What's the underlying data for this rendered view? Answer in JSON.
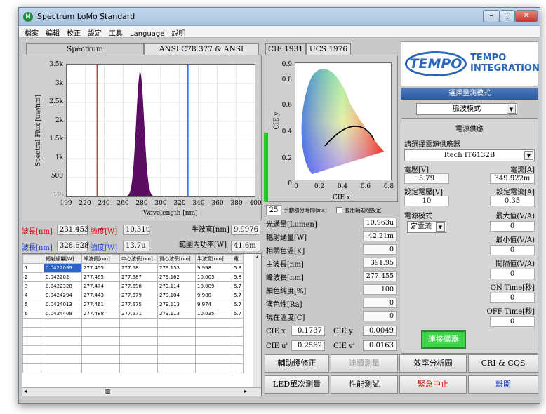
{
  "window": {
    "title": "Spectrum LoMo Standard",
    "icon_letter": "M",
    "min": "–",
    "max": "□",
    "close": "✕"
  },
  "menu": [
    "檔案",
    "編輯",
    "校正",
    "設定",
    "工具",
    "Language",
    "說明"
  ],
  "left_tabs": [
    "Spectrum",
    "ANSI C78.377 & ANSI C78.376"
  ],
  "spectrum_chart": {
    "type": "area",
    "ylabel": "Spectral Flux [uw/nm]",
    "xlabel": "Wavelength [nm]",
    "y_ticks": [
      "3.5k",
      "3k",
      "2.5k",
      "2k",
      "1.5k",
      "1k",
      "500",
      "1.8"
    ],
    "x_ticks": [
      "199",
      "220",
      "240",
      "260",
      "280",
      "300",
      "320",
      "340",
      "360",
      "380",
      "400"
    ],
    "xlim": [
      199,
      400
    ],
    "ylim": [
      0,
      3500
    ],
    "peak_x": 277.5,
    "peak_y": 3450,
    "peak_fwhm": 10,
    "fill_color": "#5b0d63",
    "red_line_x": 231.453,
    "blue_line_x": 328.628,
    "red_color": "#e8343a",
    "blue_color": "#2a63e0"
  },
  "markers": {
    "red_wl_label": "波長[nm]",
    "red_wl_value": "231.453",
    "red_int_label": "強度[W]",
    "red_int_value": "10.31u",
    "blue_wl_label": "波長[nm]",
    "blue_wl_value": "328.628",
    "blue_int_label": "強度[W]",
    "blue_int_value": "13.7u",
    "fwhm_label": "半波寬[nm]",
    "fwhm_value": "9.9976",
    "range_power_label": "範圍內功率[W]",
    "range_power_value": "41.6m"
  },
  "table": {
    "headers": [
      "",
      "輻射通量[W]",
      "峰波長[nm]",
      "中心波長[nm]",
      "質心波長[nm]",
      "半波寬[nm]",
      "電"
    ],
    "rows": [
      [
        "1",
        "0.0422099",
        "277.455",
        "277.58",
        "279.153",
        "9.998",
        "5.8"
      ],
      [
        "2",
        "0.042202",
        "277.465",
        "277.587",
        "279.162",
        "10.003",
        "5.8"
      ],
      [
        "3",
        "0.0422328",
        "277.474",
        "277.598",
        "279.114",
        "10.009",
        "5.7"
      ],
      [
        "4",
        "0.0424294",
        "277.443",
        "277.579",
        "279.104",
        "9.988",
        "5.7"
      ],
      [
        "5",
        "0.0424013",
        "277.461",
        "277.575",
        "279.113",
        "9.974",
        "5.7"
      ],
      [
        "6",
        "0.0424408",
        "277.488",
        "277.571",
        "279.113",
        "10.035",
        "5.7"
      ]
    ],
    "scroll_left": "◂",
    "scroll_right": "▸",
    "scroll_up": "▴",
    "scroll_thumb": "▥"
  },
  "cie_tabs": [
    "CIE 1931",
    "UCS 1976"
  ],
  "cie_chart": {
    "xlabel": "CIE x",
    "ylabel": "CIE y",
    "x_ticks": [
      "0",
      "0.2",
      "0.4",
      "0.6",
      "0.8"
    ],
    "y_ticks": [
      "0.9",
      "0.8",
      "0.6",
      "0.4",
      "0.2",
      "0"
    ]
  },
  "integration": {
    "value": "25",
    "label": "手動積分時間(ms)",
    "aux_label": "套用輔助燈設定"
  },
  "measurements": [
    {
      "label": "光通量[Lumen]",
      "value": "10.963u"
    },
    {
      "label": "輻射通量[W]",
      "value": "42.21m"
    },
    {
      "label": "相關色溫[K]",
      "value": "0"
    },
    {
      "label": "主波長[nm]",
      "value": "391.95"
    },
    {
      "label": "峰波長[nm]",
      "value": "277.455"
    },
    {
      "label": "顏色純度[%]",
      "value": "100"
    },
    {
      "label": "演色性[Ra]",
      "value": "0"
    },
    {
      "label": "現在溫度[C]",
      "value": "0"
    }
  ],
  "cie_values": {
    "x_label": "CIE x",
    "x_value": "0.1737",
    "y_label": "CIE y",
    "y_value": "0.0049",
    "u_label": "CIE u'",
    "u_value": "0.2562",
    "v_label": "CIE v'",
    "v_value": "0.0163"
  },
  "logo": {
    "text": "TEMPO",
    "line1": "TEMPO",
    "line2": "INTEGRATION"
  },
  "mode": {
    "title": "選擇量測模式",
    "value": "脈波模式"
  },
  "power": {
    "title": "電源供應",
    "select_label": "請選擇電源供應器",
    "device": "Itech IT6132B",
    "voltage_label": "電壓[V]",
    "voltage_value": "5.79",
    "current_label": "電流[A]",
    "current_value": "349.922m",
    "set_voltage_label": "設定電壓[V]",
    "set_voltage_value": "10",
    "set_current_label": "設定電流[A]",
    "set_current_value": "0.35",
    "mode_label": "電源模式",
    "mode_value": "定電流",
    "max_label": "最大值(V/A)",
    "max_value": "0",
    "min_label": "最小值(V/A)",
    "min_value": "0",
    "step_label": "間隔值(V/A)",
    "step_value": "0",
    "on_label": "ON Time[秒]",
    "on_value": "0",
    "off_label": "OFF Time[秒]",
    "off_value": "0",
    "connect_label": "連接儀器"
  },
  "buttons": {
    "aux_corr": "輔助燈修正",
    "continuous": "連續測量",
    "efficiency": "效率分析圖",
    "cri": "CRI & CQS",
    "led_single": "LED單次測量",
    "performance": "性能測試",
    "emergency": "緊急中止",
    "leave": "離開"
  }
}
